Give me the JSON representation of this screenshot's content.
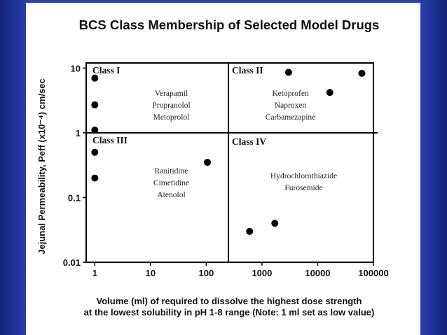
{
  "chart_data": {
    "type": "scatter",
    "title": "BCS Class Membership of Selected Model Drugs",
    "xlabel_lines": [
      "Volume (ml) of required to dissolve the highest dose strength",
      "at the lowest solubility in pH 1-8 range (Note: 1 ml set as low value)"
    ],
    "ylabel": "Jejunal Permeability, Peff (x10⁻⁴) cm/sec",
    "xscale": "log",
    "yscale": "log",
    "xlim": [
      0.7,
      100000
    ],
    "ylim": [
      0.01,
      12
    ],
    "x_ticks": [
      "1",
      "10",
      "100",
      "1000",
      "10000",
      "100000"
    ],
    "y_ticks": [
      "10",
      "1",
      "0.1",
      "0.01"
    ],
    "divider_x": 250,
    "divider_y": 1,
    "grid": false,
    "points": [
      {
        "x": 1,
        "y": 7
      },
      {
        "x": 1,
        "y": 2.7
      },
      {
        "x": 1,
        "y": 1.1
      },
      {
        "x": 1,
        "y": 0.5
      },
      {
        "x": 1,
        "y": 0.2
      },
      {
        "x": 105,
        "y": 0.35
      },
      {
        "x": 3000,
        "y": 8.6
      },
      {
        "x": 16500,
        "y": 4.2
      },
      {
        "x": 62000,
        "y": 8.3
      },
      {
        "x": 600,
        "y": 0.03
      },
      {
        "x": 1700,
        "y": 0.04
      }
    ],
    "quadrants": [
      {
        "label": "Class I",
        "drugs": [
          "Verapamil",
          "Propranolol",
          "Metoprolol"
        ]
      },
      {
        "label": "Class II",
        "drugs": [
          "Ketoprofen",
          "Naproxen",
          "Carbamezapine"
        ]
      },
      {
        "label": "Class III",
        "drugs": [
          "Ranitidine",
          "Cimetidine",
          "Atenolol"
        ]
      },
      {
        "label": "Class IV",
        "drugs": [
          "Hydrochlorothiazide",
          "Furosemide"
        ]
      }
    ]
  }
}
